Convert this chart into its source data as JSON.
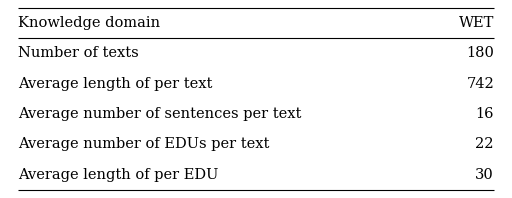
{
  "header": [
    "Knowledge domain",
    "WET"
  ],
  "rows": [
    [
      "Number of texts",
      "180"
    ],
    [
      "Average length of per text",
      "742"
    ],
    [
      "Average number of sentences per text",
      "16"
    ],
    [
      "Average number of EDUs per text",
      "22"
    ],
    [
      "Average length of per EDU",
      "30"
    ]
  ],
  "background_color": "#ffffff",
  "text_color": "#000000",
  "font_size": 10.5,
  "header_font_size": 10.5,
  "fig_width": 5.12,
  "fig_height": 1.98,
  "dpi": 100
}
